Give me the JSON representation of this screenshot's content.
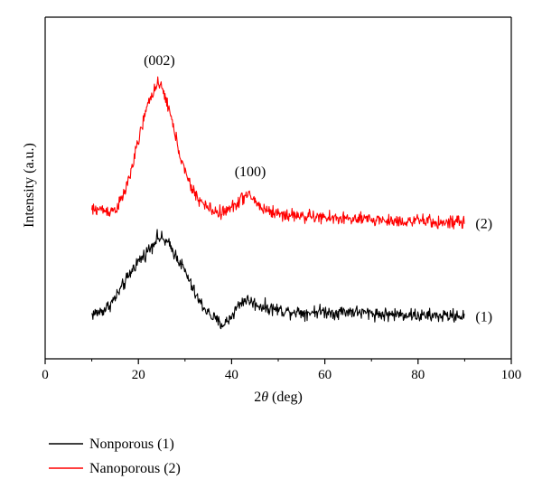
{
  "chart_data": {
    "type": "line",
    "xlabel_prefix": "2",
    "xlabel_var": "θ",
    "xlabel_suffix": " (deg)",
    "ylabel": "Intensity (a.u.)",
    "xlim": [
      0,
      100
    ],
    "x_ticks": [
      "0",
      "20",
      "40",
      "60",
      "80",
      "100"
    ],
    "y_ticks_shown": false,
    "grid": false,
    "legend_position": "bottom-left",
    "y_scale": "arbitrary units",
    "series": [
      {
        "name": "Nonporous (1)",
        "end_label": "(1)",
        "color": "#000000",
        "noise": 0.022,
        "x": [
          10,
          11,
          12,
          13,
          14,
          15,
          16,
          17,
          18,
          19,
          20,
          21,
          22,
          23,
          24,
          25,
          26,
          27,
          28,
          29,
          30,
          31,
          32,
          33,
          34,
          35,
          36,
          37,
          38,
          39,
          40,
          41,
          42,
          43,
          44,
          45,
          46,
          47,
          48,
          49,
          50,
          52,
          54,
          56,
          58,
          60,
          62,
          64,
          66,
          68,
          70,
          72,
          74,
          76,
          78,
          80,
          82,
          84,
          86,
          88,
          90
        ],
        "y": [
          0.05,
          0.06,
          0.07,
          0.09,
          0.12,
          0.16,
          0.21,
          0.26,
          0.31,
          0.37,
          0.41,
          0.44,
          0.48,
          0.52,
          0.57,
          0.56,
          0.54,
          0.5,
          0.45,
          0.4,
          0.34,
          0.27,
          0.2,
          0.14,
          0.1,
          0.06,
          0.03,
          0.0,
          -0.02,
          0.0,
          0.04,
          0.09,
          0.13,
          0.15,
          0.14,
          0.12,
          0.11,
          0.1,
          0.09,
          0.09,
          0.08,
          0.07,
          0.07,
          0.06,
          0.07,
          0.07,
          0.06,
          0.07,
          0.07,
          0.06,
          0.06,
          0.05,
          0.05,
          0.05,
          0.05,
          0.04,
          0.04,
          0.04,
          0.04,
          0.04,
          0.04
        ]
      },
      {
        "name": "Nanoporous (2)",
        "end_label": "(2)",
        "color": "#ff0000",
        "noise": 0.022,
        "x": [
          10,
          11,
          12,
          13,
          14,
          15,
          16,
          17,
          18,
          19,
          20,
          21,
          22,
          23,
          24,
          25,
          26,
          27,
          28,
          29,
          30,
          31,
          32,
          33,
          34,
          35,
          36,
          37,
          38,
          39,
          40,
          41,
          42,
          43,
          44,
          45,
          46,
          47,
          48,
          49,
          50,
          52,
          54,
          56,
          58,
          60,
          62,
          64,
          66,
          68,
          70,
          72,
          74,
          76,
          78,
          80,
          82,
          84,
          86,
          88,
          90
        ],
        "y": [
          0.75,
          0.76,
          0.76,
          0.75,
          0.75,
          0.76,
          0.8,
          0.87,
          0.97,
          1.09,
          1.22,
          1.35,
          1.46,
          1.55,
          1.6,
          1.58,
          1.5,
          1.38,
          1.25,
          1.12,
          1.01,
          0.93,
          0.87,
          0.83,
          0.79,
          0.77,
          0.75,
          0.74,
          0.74,
          0.75,
          0.77,
          0.8,
          0.83,
          0.85,
          0.85,
          0.82,
          0.78,
          0.76,
          0.75,
          0.74,
          0.73,
          0.72,
          0.72,
          0.71,
          0.71,
          0.7,
          0.7,
          0.7,
          0.69,
          0.69,
          0.69,
          0.69,
          0.68,
          0.68,
          0.68,
          0.68,
          0.68,
          0.67,
          0.67,
          0.67,
          0.67
        ]
      }
    ],
    "annotations": [
      {
        "text": "(002)",
        "x": 24.5,
        "y": 1.6
      },
      {
        "text": "(100)",
        "x": 44,
        "y": 0.85
      }
    ]
  }
}
